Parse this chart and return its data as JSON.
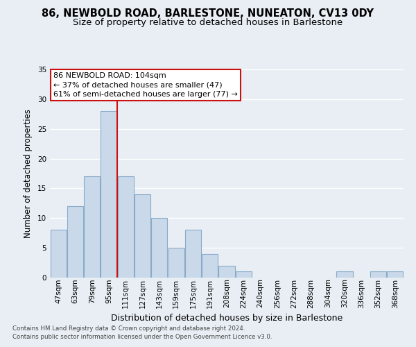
{
  "title": "86, NEWBOLD ROAD, BARLESTONE, NUNEATON, CV13 0DY",
  "subtitle": "Size of property relative to detached houses in Barlestone",
  "xlabel": "Distribution of detached houses by size in Barlestone",
  "ylabel": "Number of detached properties",
  "bar_labels": [
    "47sqm",
    "63sqm",
    "79sqm",
    "95sqm",
    "111sqm",
    "127sqm",
    "143sqm",
    "159sqm",
    "175sqm",
    "191sqm",
    "208sqm",
    "224sqm",
    "240sqm",
    "256sqm",
    "272sqm",
    "288sqm",
    "304sqm",
    "320sqm",
    "336sqm",
    "352sqm",
    "368sqm"
  ],
  "bar_values": [
    8,
    12,
    17,
    28,
    17,
    14,
    10,
    5,
    8,
    4,
    2,
    1,
    0,
    0,
    0,
    0,
    0,
    1,
    0,
    1,
    1
  ],
  "bar_color": "#c9d9ea",
  "bar_edge_color": "#8aaac8",
  "highlight_line_color": "#cc1111",
  "ylim": [
    0,
    35
  ],
  "yticks": [
    0,
    5,
    10,
    15,
    20,
    25,
    30,
    35
  ],
  "annotation_line1": "86 NEWBOLD ROAD: 104sqm",
  "annotation_line2": "← 37% of detached houses are smaller (47)",
  "annotation_line3": "61% of semi-detached houses are larger (77) →",
  "annotation_box_color": "#ffffff",
  "annotation_box_edge": "#cc1111",
  "footnote1": "Contains HM Land Registry data © Crown copyright and database right 2024.",
  "footnote2": "Contains public sector information licensed under the Open Government Licence v3.0.",
  "background_color": "#e8eef4",
  "grid_color": "#ffffff",
  "title_fontsize": 10.5,
  "subtitle_fontsize": 9.5,
  "ylabel_fontsize": 8.5,
  "xlabel_fontsize": 9,
  "tick_fontsize": 7.5
}
